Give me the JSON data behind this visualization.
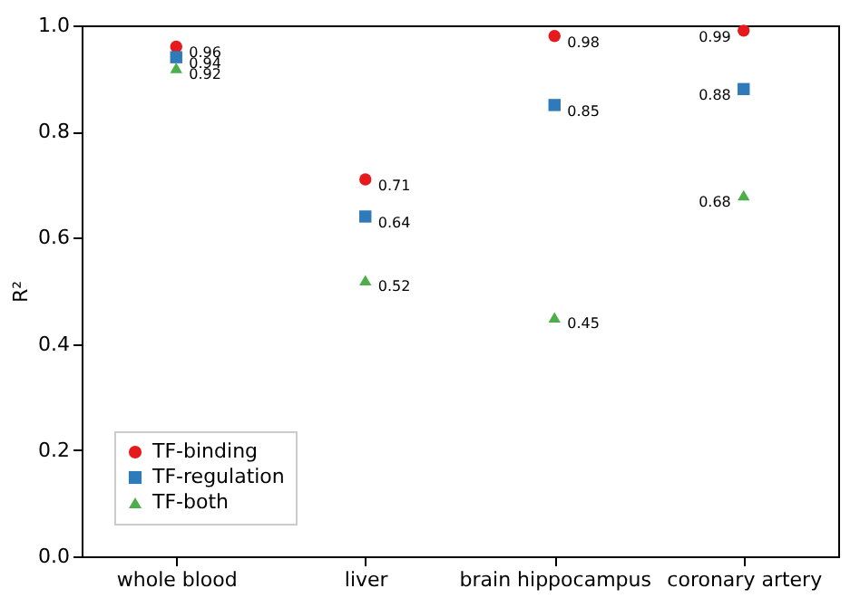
{
  "chart_data": {
    "type": "scatter",
    "ylabel": "R²",
    "categories": [
      "whole blood",
      "liver",
      "brain hippocampus",
      "coronary artery"
    ],
    "series": [
      {
        "name": "TF-binding",
        "color": "#e41a1c",
        "marker": "circle",
        "values": [
          0.96,
          0.71,
          0.98,
          0.99
        ]
      },
      {
        "name": "TF-regulation",
        "color": "#2f7ab8",
        "marker": "square",
        "values": [
          0.94,
          0.64,
          0.85,
          0.88
        ]
      },
      {
        "name": "TF-both",
        "color": "#4daf4a",
        "marker": "triangle",
        "values": [
          0.92,
          0.52,
          0.45,
          0.68
        ]
      }
    ],
    "ylim": [
      0,
      1
    ],
    "yticks": [
      {
        "value": 0,
        "label": "0.0"
      },
      0.2,
      0.4,
      0.6,
      0.8,
      {
        "value": 1,
        "label": "1.0"
      }
    ],
    "grid": false,
    "legend": "bottom left",
    "data_labels": true
  }
}
